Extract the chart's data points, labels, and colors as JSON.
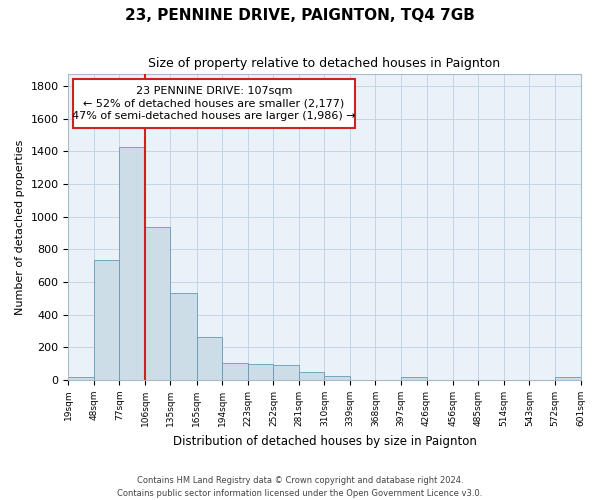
{
  "title": "23, PENNINE DRIVE, PAIGNTON, TQ4 7GB",
  "subtitle": "Size of property relative to detached houses in Paignton",
  "xlabel": "Distribution of detached houses by size in Paignton",
  "ylabel": "Number of detached properties",
  "footnote1": "Contains HM Land Registry data © Crown copyright and database right 2024.",
  "footnote2": "Contains public sector information licensed under the Open Government Licence v3.0.",
  "annotation_line1": "23 PENNINE DRIVE: 107sqm",
  "annotation_line2": "← 52% of detached houses are smaller (2,177)",
  "annotation_line3": "47% of semi-detached houses are larger (1,986) →",
  "bar_edges": [
    19,
    48,
    77,
    106,
    135,
    165,
    194,
    223,
    252,
    281,
    310,
    339,
    368,
    397,
    426,
    456,
    485,
    514,
    543,
    572,
    601
  ],
  "bar_heights": [
    20,
    735,
    1425,
    935,
    530,
    265,
    105,
    100,
    90,
    48,
    25,
    0,
    0,
    18,
    0,
    0,
    0,
    0,
    0,
    18
  ],
  "bar_color": "#ccdde8",
  "bar_edge_color": "#6699bb",
  "grid_color": "#c5d5e5",
  "bg_color": "#eaf1f8",
  "annotation_box_color": "#cc2222",
  "property_line_x": 106,
  "property_line_color": "#cc2222",
  "ylim": [
    0,
    1870
  ],
  "yticks": [
    0,
    200,
    400,
    600,
    800,
    1000,
    1200,
    1400,
    1600,
    1800
  ],
  "tick_labels": [
    "19sqm",
    "48sqm",
    "77sqm",
    "106sqm",
    "135sqm",
    "165sqm",
    "194sqm",
    "223sqm",
    "252sqm",
    "281sqm",
    "310sqm",
    "339sqm",
    "368sqm",
    "397sqm",
    "426sqm",
    "456sqm",
    "485sqm",
    "514sqm",
    "543sqm",
    "572sqm",
    "601sqm"
  ]
}
